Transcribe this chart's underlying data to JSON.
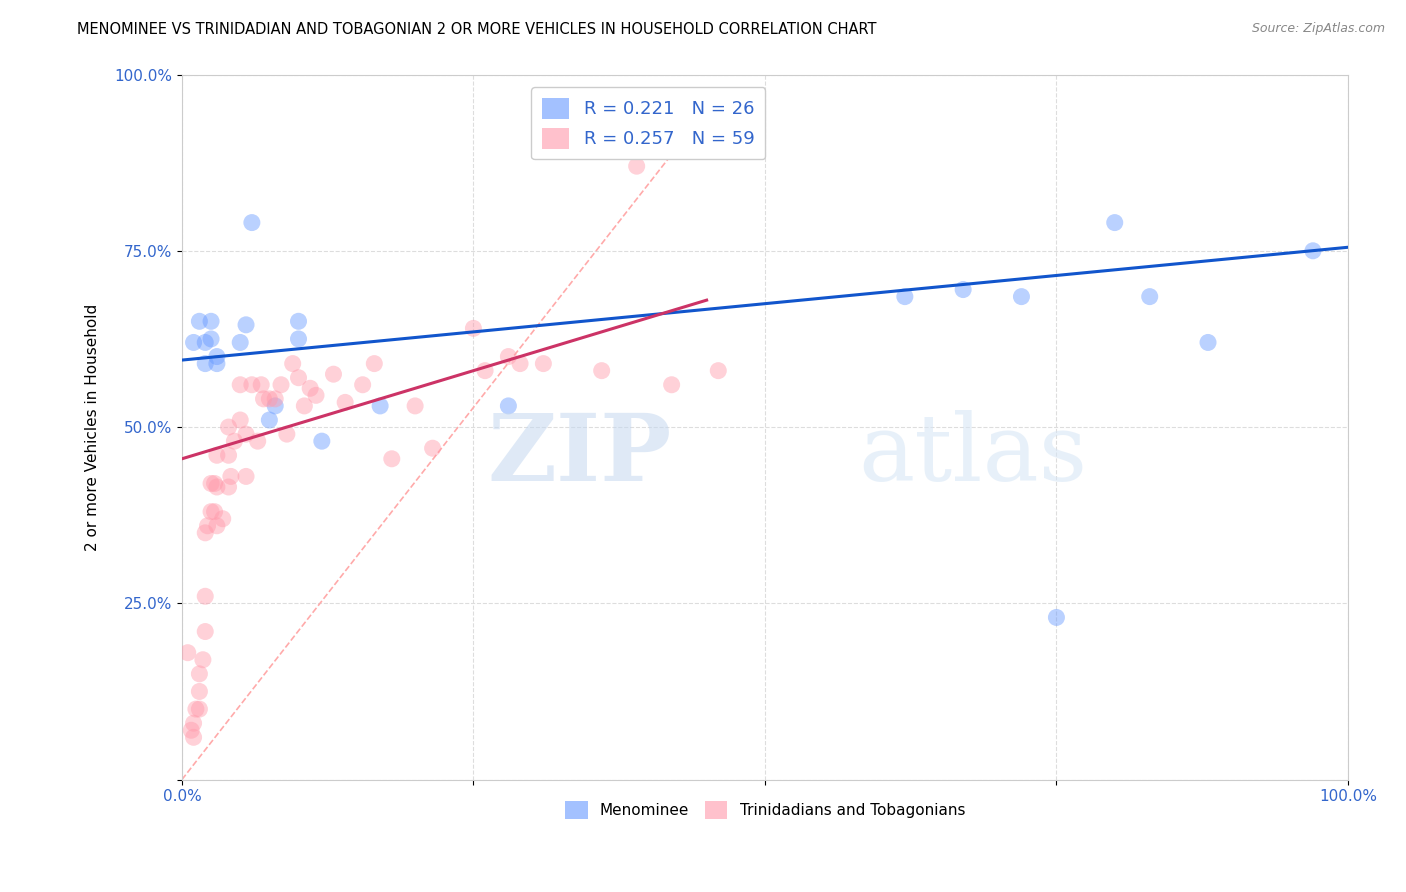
{
  "title": "MENOMINEE VS TRINIDADIAN AND TOBAGONIAN 2 OR MORE VEHICLES IN HOUSEHOLD CORRELATION CHART",
  "source": "Source: ZipAtlas.com",
  "xlabel": "",
  "ylabel": "2 or more Vehicles in Household",
  "xlim": [
    0,
    1
  ],
  "ylim": [
    0,
    1
  ],
  "xticks": [
    0,
    0.25,
    0.5,
    0.75,
    1.0
  ],
  "yticks": [
    0,
    0.25,
    0.5,
    0.75,
    1.0
  ],
  "xticklabels": [
    "0.0%",
    "",
    "",
    "",
    "100.0%"
  ],
  "yticklabels": [
    "",
    "25.0%",
    "50.0%",
    "75.0%",
    "100.0%"
  ],
  "legend_r1": "R = 0.221",
  "legend_n1": "N = 26",
  "legend_r2": "R = 0.257",
  "legend_n2": "N = 59",
  "legend_label1": "Menominee",
  "legend_label2": "Trinidadians and Tobagonians",
  "blue_color": "#6699FF",
  "pink_color": "#FF99AA",
  "blue_line_color": "#1155CC",
  "pink_line_color": "#CC3366",
  "diagonal_color": "#FFAAAA",
  "watermark_zip": "ZIP",
  "watermark_atlas": "atlas",
  "menominee_x": [
    0.01,
    0.015,
    0.02,
    0.02,
    0.025,
    0.025,
    0.03,
    0.03,
    0.05,
    0.055,
    0.06,
    0.075,
    0.08,
    0.1,
    0.1,
    0.12,
    0.17,
    0.62,
    0.67,
    0.72,
    0.75,
    0.8,
    0.83,
    0.88,
    0.97,
    0.28
  ],
  "menominee_y": [
    0.62,
    0.65,
    0.59,
    0.62,
    0.625,
    0.65,
    0.59,
    0.6,
    0.62,
    0.645,
    0.79,
    0.51,
    0.53,
    0.625,
    0.65,
    0.48,
    0.53,
    0.685,
    0.695,
    0.685,
    0.23,
    0.79,
    0.685,
    0.62,
    0.75,
    0.53
  ],
  "trinidadian_x": [
    0.005,
    0.008,
    0.01,
    0.01,
    0.012,
    0.015,
    0.015,
    0.015,
    0.018,
    0.02,
    0.02,
    0.02,
    0.022,
    0.025,
    0.025,
    0.028,
    0.028,
    0.03,
    0.03,
    0.03,
    0.035,
    0.04,
    0.04,
    0.04,
    0.042,
    0.045,
    0.05,
    0.05,
    0.055,
    0.055,
    0.06,
    0.065,
    0.068,
    0.07,
    0.075,
    0.08,
    0.085,
    0.09,
    0.095,
    0.1,
    0.105,
    0.11,
    0.115,
    0.13,
    0.14,
    0.155,
    0.165,
    0.18,
    0.2,
    0.215,
    0.25,
    0.26,
    0.28,
    0.29,
    0.31,
    0.36,
    0.39,
    0.42,
    0.46
  ],
  "trinidadian_y": [
    0.18,
    0.07,
    0.06,
    0.08,
    0.1,
    0.1,
    0.125,
    0.15,
    0.17,
    0.21,
    0.26,
    0.35,
    0.36,
    0.38,
    0.42,
    0.38,
    0.42,
    0.36,
    0.415,
    0.46,
    0.37,
    0.415,
    0.46,
    0.5,
    0.43,
    0.48,
    0.51,
    0.56,
    0.43,
    0.49,
    0.56,
    0.48,
    0.56,
    0.54,
    0.54,
    0.54,
    0.56,
    0.49,
    0.59,
    0.57,
    0.53,
    0.555,
    0.545,
    0.575,
    0.535,
    0.56,
    0.59,
    0.455,
    0.53,
    0.47,
    0.64,
    0.58,
    0.6,
    0.59,
    0.59,
    0.58,
    0.87,
    0.56,
    0.58
  ],
  "blue_line_x": [
    0.0,
    1.0
  ],
  "blue_line_y": [
    0.595,
    0.755
  ],
  "pink_line_x": [
    0.0,
    0.45
  ],
  "pink_line_y": [
    0.455,
    0.68
  ],
  "figsize": [
    14.06,
    8.92
  ],
  "dpi": 100
}
